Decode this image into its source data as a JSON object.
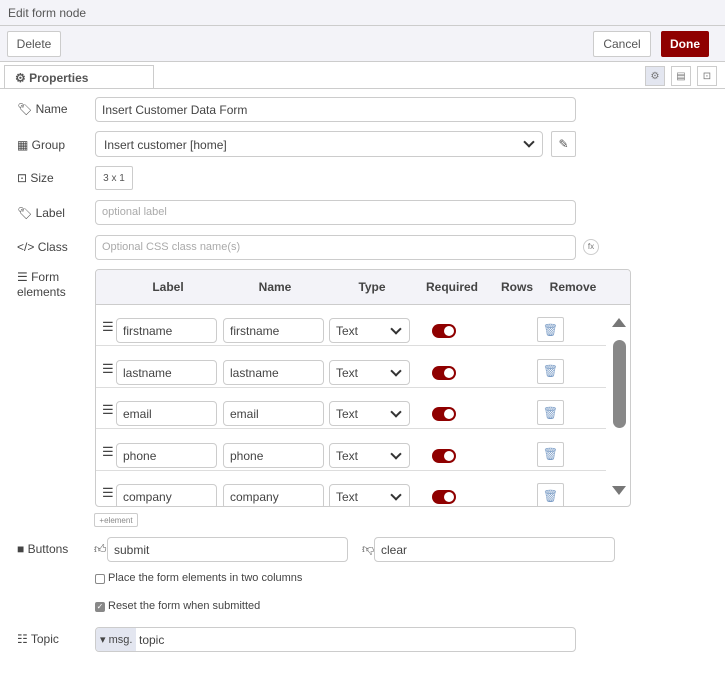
{
  "dialog": {
    "title": "Edit form node",
    "delete": "Delete",
    "cancel": "Cancel",
    "done": "Done",
    "tab": "Properties"
  },
  "fields": {
    "name": {
      "label": "Name",
      "value": "Insert Customer Data Form"
    },
    "group": {
      "label": "Group",
      "value": "Insert customer [home]"
    },
    "size": {
      "label": "Size",
      "value": "3 x 1"
    },
    "labelf": {
      "label": "Label",
      "placeholder": "optional label"
    },
    "class": {
      "label": "Class",
      "placeholder": "Optional CSS class name(s)"
    },
    "elements_label": [
      "Form",
      "elements"
    ],
    "buttons": {
      "label": "Buttons",
      "submit": "submit",
      "clear": "clear"
    },
    "two_columns": {
      "label": "Place the form elements in two columns",
      "checked": false
    },
    "reset": {
      "label": "Reset the form when submitted",
      "checked": true
    },
    "topic": {
      "label": "Topic",
      "prefix": "msg.",
      "value": "topic"
    }
  },
  "table": {
    "headers": [
      "Label",
      "Name",
      "Type",
      "Required",
      "Rows",
      "Remove"
    ],
    "rows": [
      {
        "label": "firstname",
        "name": "firstname",
        "type": "Text",
        "required": true
      },
      {
        "label": "lastname",
        "name": "lastname",
        "type": "Text",
        "required": true
      },
      {
        "label": "email",
        "name": "email",
        "type": "Text",
        "required": true
      },
      {
        "label": "phone",
        "name": "phone",
        "type": "Text",
        "required": true
      },
      {
        "label": "company",
        "name": "company",
        "type": "Text",
        "required": true
      }
    ],
    "add_label": "element"
  },
  "colors": {
    "accent": "#8f0000"
  }
}
